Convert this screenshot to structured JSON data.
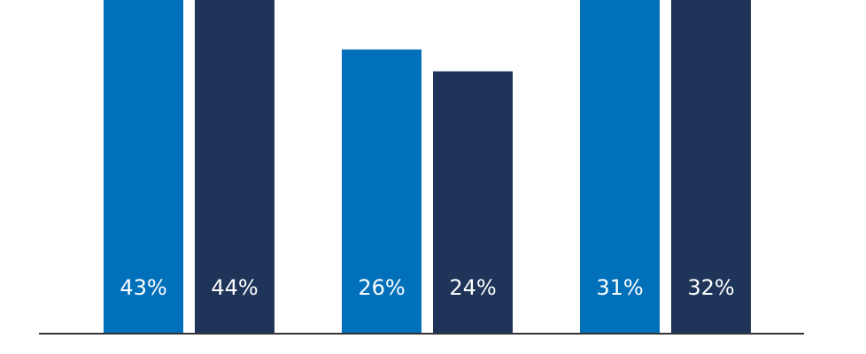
{
  "chart_data": {
    "type": "bar",
    "categories": [
      "",
      "",
      ""
    ],
    "series": [
      {
        "values": [
          43,
          26,
          31
        ],
        "labels": [
          "43%",
          "26%",
          "31%"
        ]
      },
      {
        "values": [
          44,
          24,
          32
        ],
        "labels": [
          "44%",
          "24%",
          "32%"
        ]
      }
    ],
    "y_unit": "%",
    "grid": false,
    "legend": "none"
  },
  "colors": {
    "series_1": "#0070bb",
    "series_2": "#1e3559",
    "axis": "#333333",
    "label_text": "#ffffff",
    "background": "#ffffff"
  }
}
